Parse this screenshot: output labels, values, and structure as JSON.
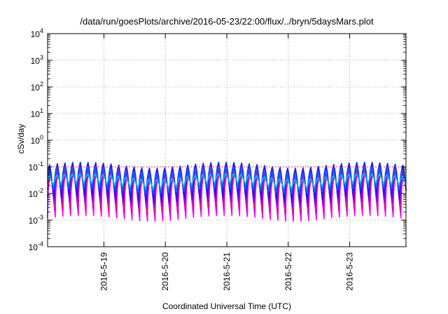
{
  "chart_data": {
    "type": "line",
    "title": "/data/run/goesPlots/archive/2016-05-23/22:00/flux/../bryn/5daysMars.plot",
    "xlabel": "Coordinated Universal Time (UTC)",
    "ylabel": "cSv/day",
    "y_scale": "log",
    "ylim": [
      0.0001,
      10000
    ],
    "xlim": [
      "2016-05-18 02:00",
      "2016-05-23 22:00"
    ],
    "x_ticks": [
      "2016-5-19",
      "2016-5-20",
      "2016-5-21",
      "2016-5-22",
      "2016-5-23"
    ],
    "y_ticks": [
      {
        "base": "10",
        "exp": "-4",
        "value": 0.0001
      },
      {
        "base": "10",
        "exp": "-3",
        "value": 0.001
      },
      {
        "base": "10",
        "exp": "-2",
        "value": 0.01
      },
      {
        "base": "10",
        "exp": "-1",
        "value": 0.1
      },
      {
        "base": "10",
        "exp": "0",
        "value": 1
      },
      {
        "base": "10",
        "exp": "1",
        "value": 10
      },
      {
        "base": "10",
        "exp": "2",
        "value": 100
      },
      {
        "base": "10",
        "exp": "3",
        "value": 1000
      },
      {
        "base": "10",
        "exp": "4",
        "value": 10000
      }
    ],
    "grid": true,
    "legend": "none",
    "threshold_line": {
      "value": 0.1,
      "color": "#ff3333"
    },
    "cycle_hours": 3,
    "series": [
      {
        "color": "#ff00ff",
        "peak": 0.06,
        "trough": 0.0012
      },
      {
        "color": "#cc00cc",
        "peak": 0.07,
        "trough": 0.0018
      },
      {
        "color": "#dd2266",
        "peak": 0.08,
        "trough": 0.0025
      },
      {
        "color": "#9900ff",
        "peak": 0.09,
        "trough": 0.0035
      },
      {
        "color": "#6a00cc",
        "peak": 0.1,
        "trough": 0.005
      },
      {
        "color": "#1a1aff",
        "peak": 0.12,
        "trough": 0.007
      },
      {
        "color": "#0066ff",
        "peak": 0.08,
        "trough": 0.012
      },
      {
        "color": "#00bbee",
        "peak": 0.045,
        "trough": 0.02
      }
    ]
  }
}
